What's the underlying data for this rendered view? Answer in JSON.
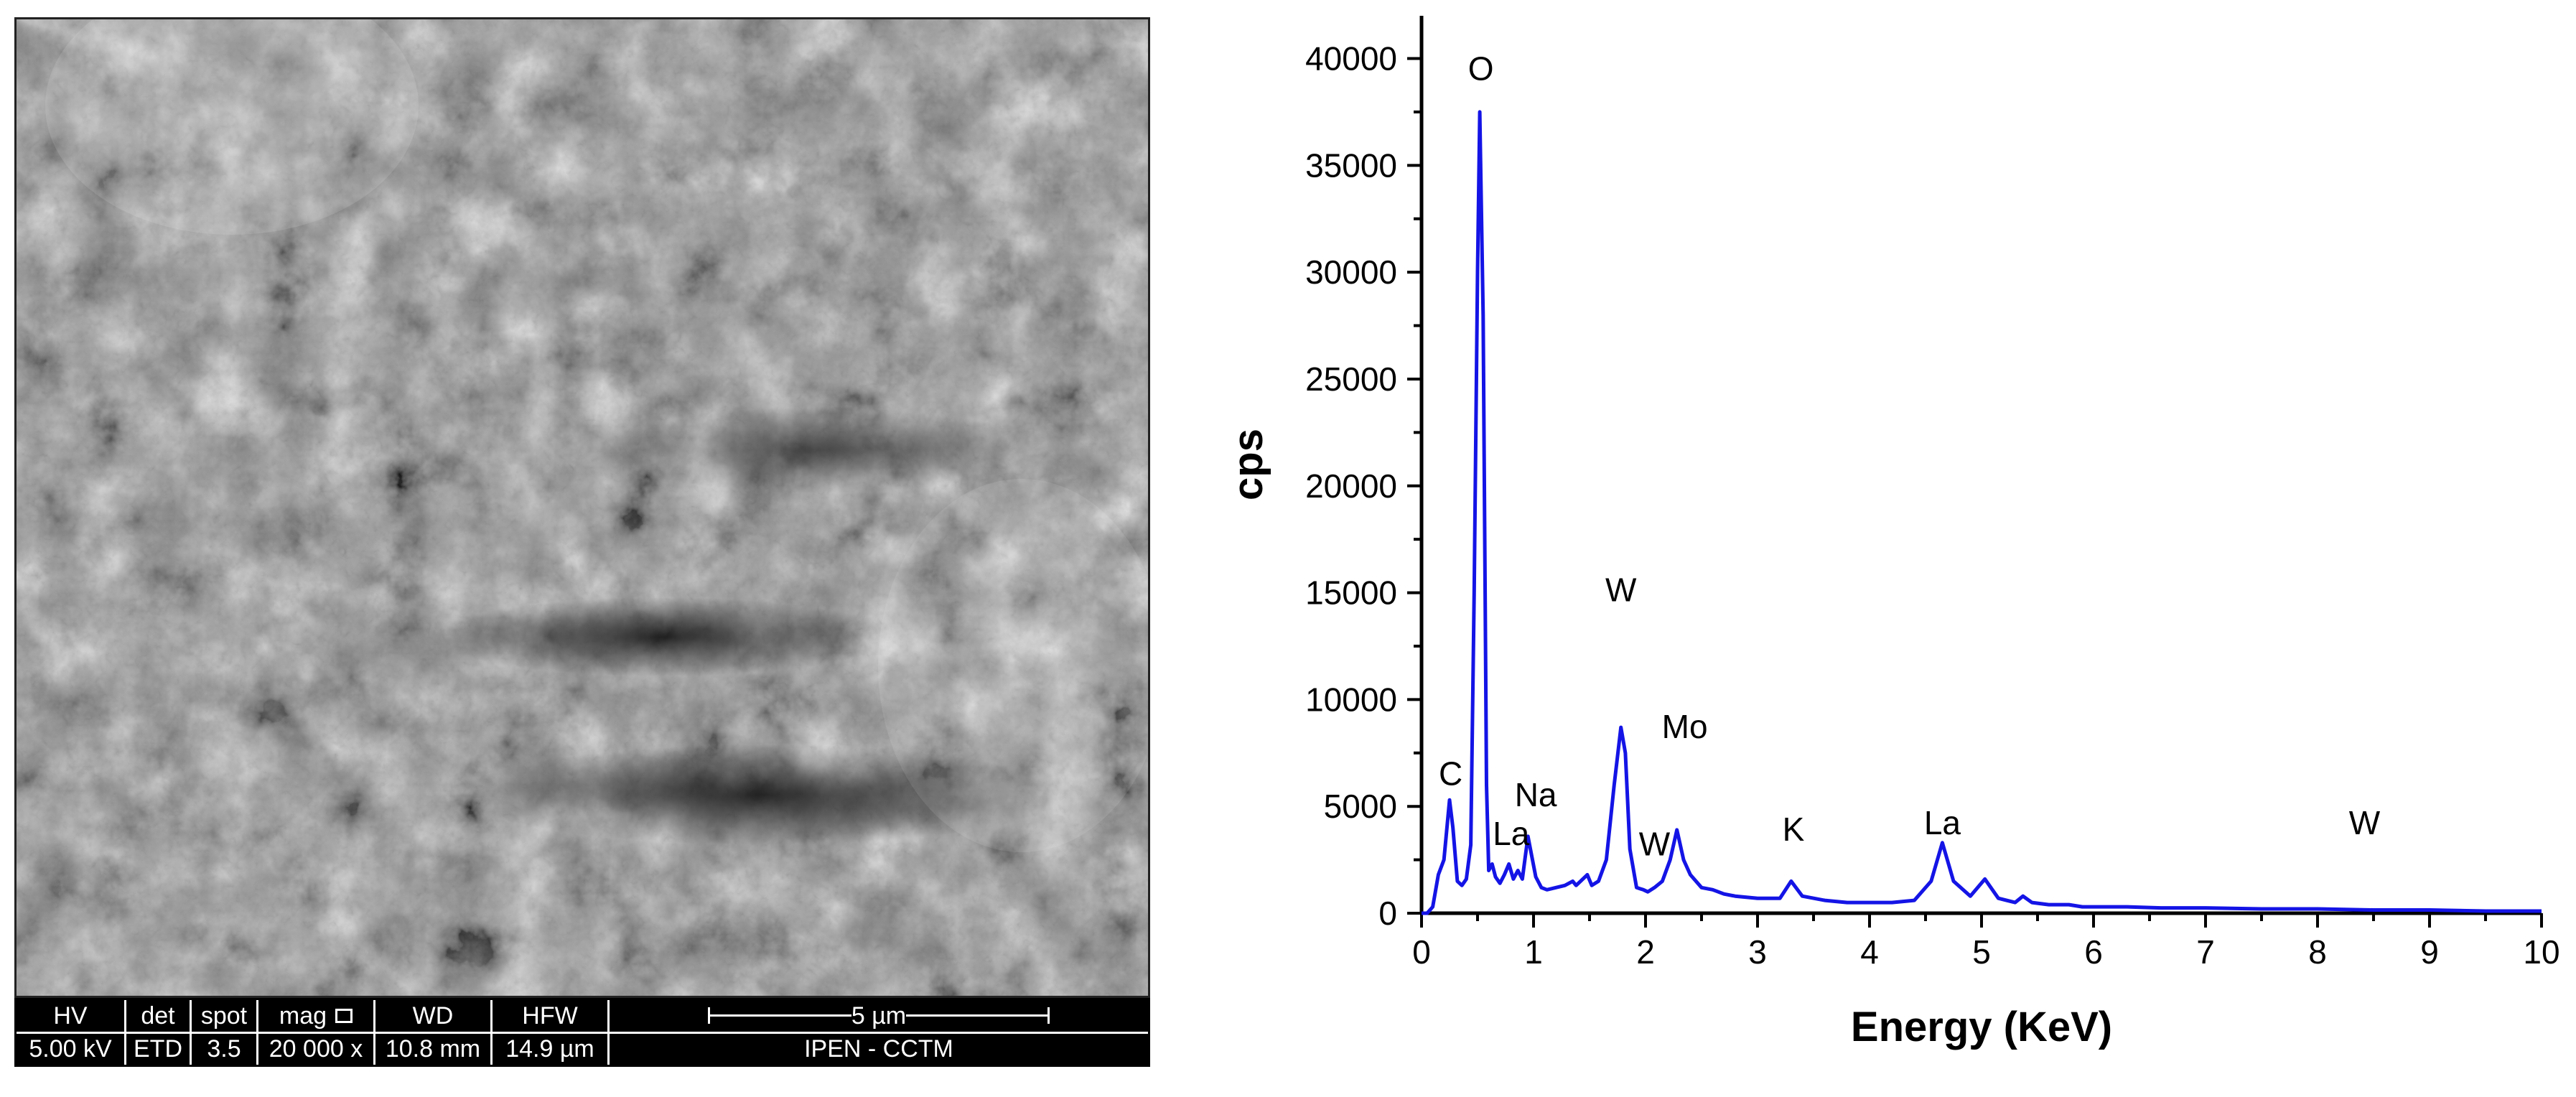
{
  "sem": {
    "info_bar": [
      {
        "header": "HV",
        "value": "5.00 kV"
      },
      {
        "header": "det",
        "value": "ETD"
      },
      {
        "header": "spot",
        "value": "3.5"
      },
      {
        "header": "mag",
        "value": "20 000 x"
      },
      {
        "header": "WD",
        "value": "10.8 mm"
      },
      {
        "header": "HFW",
        "value": "14.9 µm"
      }
    ],
    "scale_label": "5 µm",
    "lab_label": "IPEN - CCTM"
  },
  "chart_data": {
    "type": "line",
    "xlabel": "Energy (KeV)",
    "ylabel": "cps",
    "xlim": [
      0,
      10
    ],
    "ylim": [
      0,
      42000
    ],
    "x_ticks": [
      0,
      1,
      2,
      3,
      4,
      5,
      6,
      7,
      8,
      9,
      10
    ],
    "y_ticks": [
      0,
      5000,
      10000,
      15000,
      20000,
      25000,
      30000,
      35000,
      40000
    ],
    "grid": false,
    "line_color": "#1414e6",
    "series": [
      {
        "x": [
          0,
          0.05,
          0.1,
          0.15,
          0.2,
          0.25,
          0.28,
          0.32,
          0.36,
          0.4,
          0.44,
          0.47,
          0.5,
          0.52,
          0.55,
          0.58,
          0.6,
          0.63,
          0.66,
          0.7,
          0.74,
          0.78,
          0.82,
          0.86,
          0.9,
          0.95,
          1.02,
          1.07,
          1.12,
          1.2,
          1.28,
          1.35,
          1.38,
          1.42,
          1.48,
          1.52,
          1.58,
          1.65,
          1.72,
          1.78,
          1.82,
          1.86,
          1.92,
          1.98,
          2.02,
          2.08,
          2.15,
          2.22,
          2.28,
          2.34,
          2.4,
          2.5,
          2.6,
          2.7,
          2.8,
          3.0,
          3.2,
          3.3,
          3.4,
          3.6,
          3.8,
          4.0,
          4.2,
          4.4,
          4.55,
          4.65,
          4.75,
          4.9,
          5.03,
          5.15,
          5.3,
          5.37,
          5.45,
          5.6,
          5.78,
          5.9,
          6.0,
          6.3,
          6.6,
          7.0,
          7.5,
          8.0,
          8.5,
          9.0,
          9.5,
          10.0
        ],
        "y": [
          0,
          0,
          300,
          1800,
          2500,
          5300,
          4000,
          1500,
          1300,
          1600,
          3200,
          15000,
          30000,
          37500,
          28000,
          6000,
          2000,
          2300,
          1700,
          1400,
          1800,
          2300,
          1600,
          2000,
          1600,
          3600,
          1700,
          1200,
          1100,
          1200,
          1300,
          1500,
          1300,
          1500,
          1800,
          1300,
          1500,
          2500,
          6000,
          8700,
          7500,
          3000,
          1200,
          1100,
          1000,
          1200,
          1500,
          2500,
          3900,
          2500,
          1800,
          1200,
          1100,
          900,
          800,
          700,
          700,
          1500,
          800,
          600,
          500,
          500,
          500,
          600,
          1500,
          3300,
          1500,
          800,
          1600,
          700,
          500,
          800,
          500,
          400,
          400,
          300,
          300,
          300,
          250,
          250,
          200,
          200,
          150,
          150,
          100,
          100
        ]
      }
    ],
    "annotations": [
      {
        "text": "O",
        "x": 0.53,
        "y": 39000
      },
      {
        "text": "W",
        "x": 1.78,
        "y": 14600
      },
      {
        "text": "Mo",
        "x": 2.35,
        "y": 8200
      },
      {
        "text": "C",
        "x": 0.26,
        "y": 6000
      },
      {
        "text": "Na",
        "x": 1.02,
        "y": 5000
      },
      {
        "text": "La",
        "x": 0.8,
        "y": 3200
      },
      {
        "text": "W",
        "x": 2.08,
        "y": 2700
      },
      {
        "text": "K",
        "x": 3.32,
        "y": 3400
      },
      {
        "text": "La",
        "x": 4.65,
        "y": 3700
      },
      {
        "text": "W",
        "x": 8.42,
        "y": 3700
      }
    ]
  }
}
